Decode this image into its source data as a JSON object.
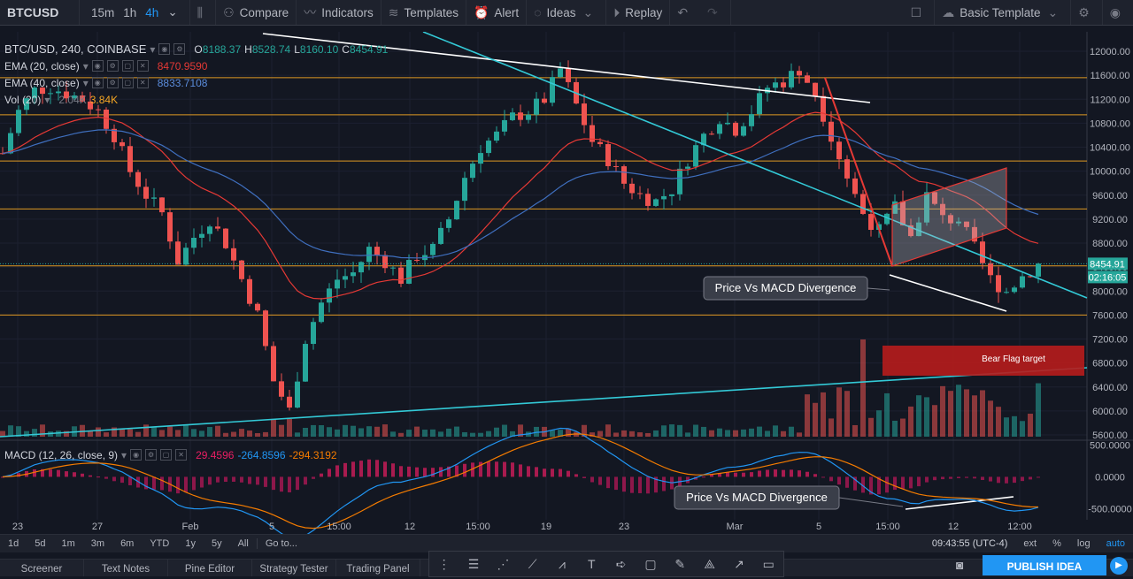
{
  "toolbar": {
    "symbol": "BTCUSD",
    "intervals": [
      "15m",
      "1h",
      "4h"
    ],
    "active_interval": "4h",
    "compare": "Compare",
    "indicators": "Indicators",
    "templates": "Templates",
    "alert": "Alert",
    "ideas": "Ideas",
    "replay": "Replay",
    "basic_template": "Basic Template"
  },
  "legend": {
    "title": "BTC/USD, 240, COINBASE",
    "o_label": "O",
    "o": "8188.37",
    "h_label": "H",
    "h": "8528.74",
    "l_label": "L",
    "l": "8160.10",
    "c_label": "C",
    "c": "8454.91",
    "ema20_label": "EMA (20, close)",
    "ema20": "8470.9590",
    "ema40_label": "EMA (40, close)",
    "ema40": "8833.7108",
    "vol_label": "Vol (20)",
    "vol1": "2.04K",
    "vol2": "3.84K"
  },
  "macd_legend": {
    "label": "MACD (12, 26, close, 9)",
    "v1": "29.4596",
    "v2": "-264.8596",
    "v3": "-294.3192"
  },
  "price_axis": [
    "12000.00",
    "11600.00",
    "11200.00",
    "10800.00",
    "10400.00",
    "10000.00",
    "9600.00",
    "9200.00",
    "8800.00",
    "8400.00",
    "8000.00",
    "7600.00",
    "7200.00",
    "6800.00",
    "6400.00",
    "6000.00",
    "5600.00"
  ],
  "price_tag": "8454.91",
  "countdown": "02:16:05",
  "macd_axis": [
    "500.0000",
    "0.0000",
    "-500.0000"
  ],
  "annotations": {
    "divergence_1": "Price Vs MACD Divergence",
    "divergence_2": "Price Vs MACD Divergence",
    "bear_flag": "Bear Flag target"
  },
  "time_axis": [
    "23",
    "27",
    "Feb",
    "5",
    "15:00",
    "12",
    "15:00",
    "19",
    "23",
    "Mar",
    "5",
    "15:00",
    "12",
    "12:00"
  ],
  "bottom": {
    "ranges": [
      "1d",
      "5d",
      "1m",
      "3m",
      "6m",
      "YTD",
      "1y",
      "5y",
      "All"
    ],
    "goto": "Go to...",
    "clock": "09:43:55 (UTC-4)",
    "ext": "ext",
    "pct": "%",
    "log": "log",
    "auto": "auto"
  },
  "tabs": [
    "Screener",
    "Text Notes",
    "Pine Editor",
    "Strategy Tester",
    "Trading Panel"
  ],
  "publish": "PUBLISH IDEA",
  "colors": {
    "up": "#26a69a",
    "down": "#ef5350",
    "ema20": "#e53935",
    "ema40": "#3f6fbf",
    "trend": "#33c9d6",
    "hline": "#f5a623",
    "accent": "#2196f3",
    "bear_box": "#b71c1c"
  },
  "chart_data": {
    "type": "candlestick",
    "symbol": "BTC/USD",
    "interval": "240",
    "exchange": "COINBASE",
    "price_range": [
      5600,
      12000
    ],
    "horizontal_levels": [
      11560,
      10940,
      10170,
      9370,
      8420,
      7600
    ],
    "close_path": [
      [
        0,
        10300
      ],
      [
        2,
        11000
      ],
      [
        4,
        11350
      ],
      [
        6,
        11400
      ],
      [
        8,
        11300
      ],
      [
        10,
        11200
      ],
      [
        12,
        11000
      ],
      [
        14,
        10600
      ],
      [
        16,
        10000
      ],
      [
        18,
        9600
      ],
      [
        20,
        9300
      ],
      [
        22,
        8500
      ],
      [
        24,
        8900
      ],
      [
        26,
        9200
      ],
      [
        28,
        8800
      ],
      [
        30,
        8200
      ],
      [
        32,
        7600
      ],
      [
        34,
        6500
      ],
      [
        36,
        6000
      ],
      [
        38,
        7200
      ],
      [
        40,
        7800
      ],
      [
        42,
        8200
      ],
      [
        44,
        8300
      ],
      [
        46,
        8700
      ],
      [
        48,
        8500
      ],
      [
        50,
        8200
      ],
      [
        52,
        8600
      ],
      [
        54,
        8700
      ],
      [
        56,
        9200
      ],
      [
        58,
        9900
      ],
      [
        60,
        10400
      ],
      [
        62,
        10600
      ],
      [
        64,
        10900
      ],
      [
        66,
        11000
      ],
      [
        68,
        11200
      ],
      [
        70,
        11700
      ],
      [
        72,
        11100
      ],
      [
        74,
        10500
      ],
      [
        76,
        10200
      ],
      [
        78,
        9800
      ],
      [
        80,
        9600
      ],
      [
        82,
        9500
      ],
      [
        84,
        9700
      ],
      [
        86,
        10200
      ],
      [
        88,
        10600
      ],
      [
        90,
        10900
      ],
      [
        92,
        10700
      ],
      [
        94,
        11000
      ],
      [
        96,
        11400
      ],
      [
        98,
        11500
      ],
      [
        100,
        11700
      ],
      [
        102,
        11300
      ],
      [
        104,
        10600
      ],
      [
        106,
        9900
      ],
      [
        108,
        9300
      ],
      [
        110,
        9000
      ],
      [
        112,
        9400
      ],
      [
        114,
        8900
      ],
      [
        116,
        9600
      ],
      [
        118,
        9200
      ],
      [
        120,
        9200
      ],
      [
        122,
        8700
      ],
      [
        124,
        8200
      ],
      [
        126,
        8000
      ],
      [
        128,
        8250
      ],
      [
        130,
        8455
      ]
    ],
    "macd_range": [
      -650,
      550
    ]
  }
}
